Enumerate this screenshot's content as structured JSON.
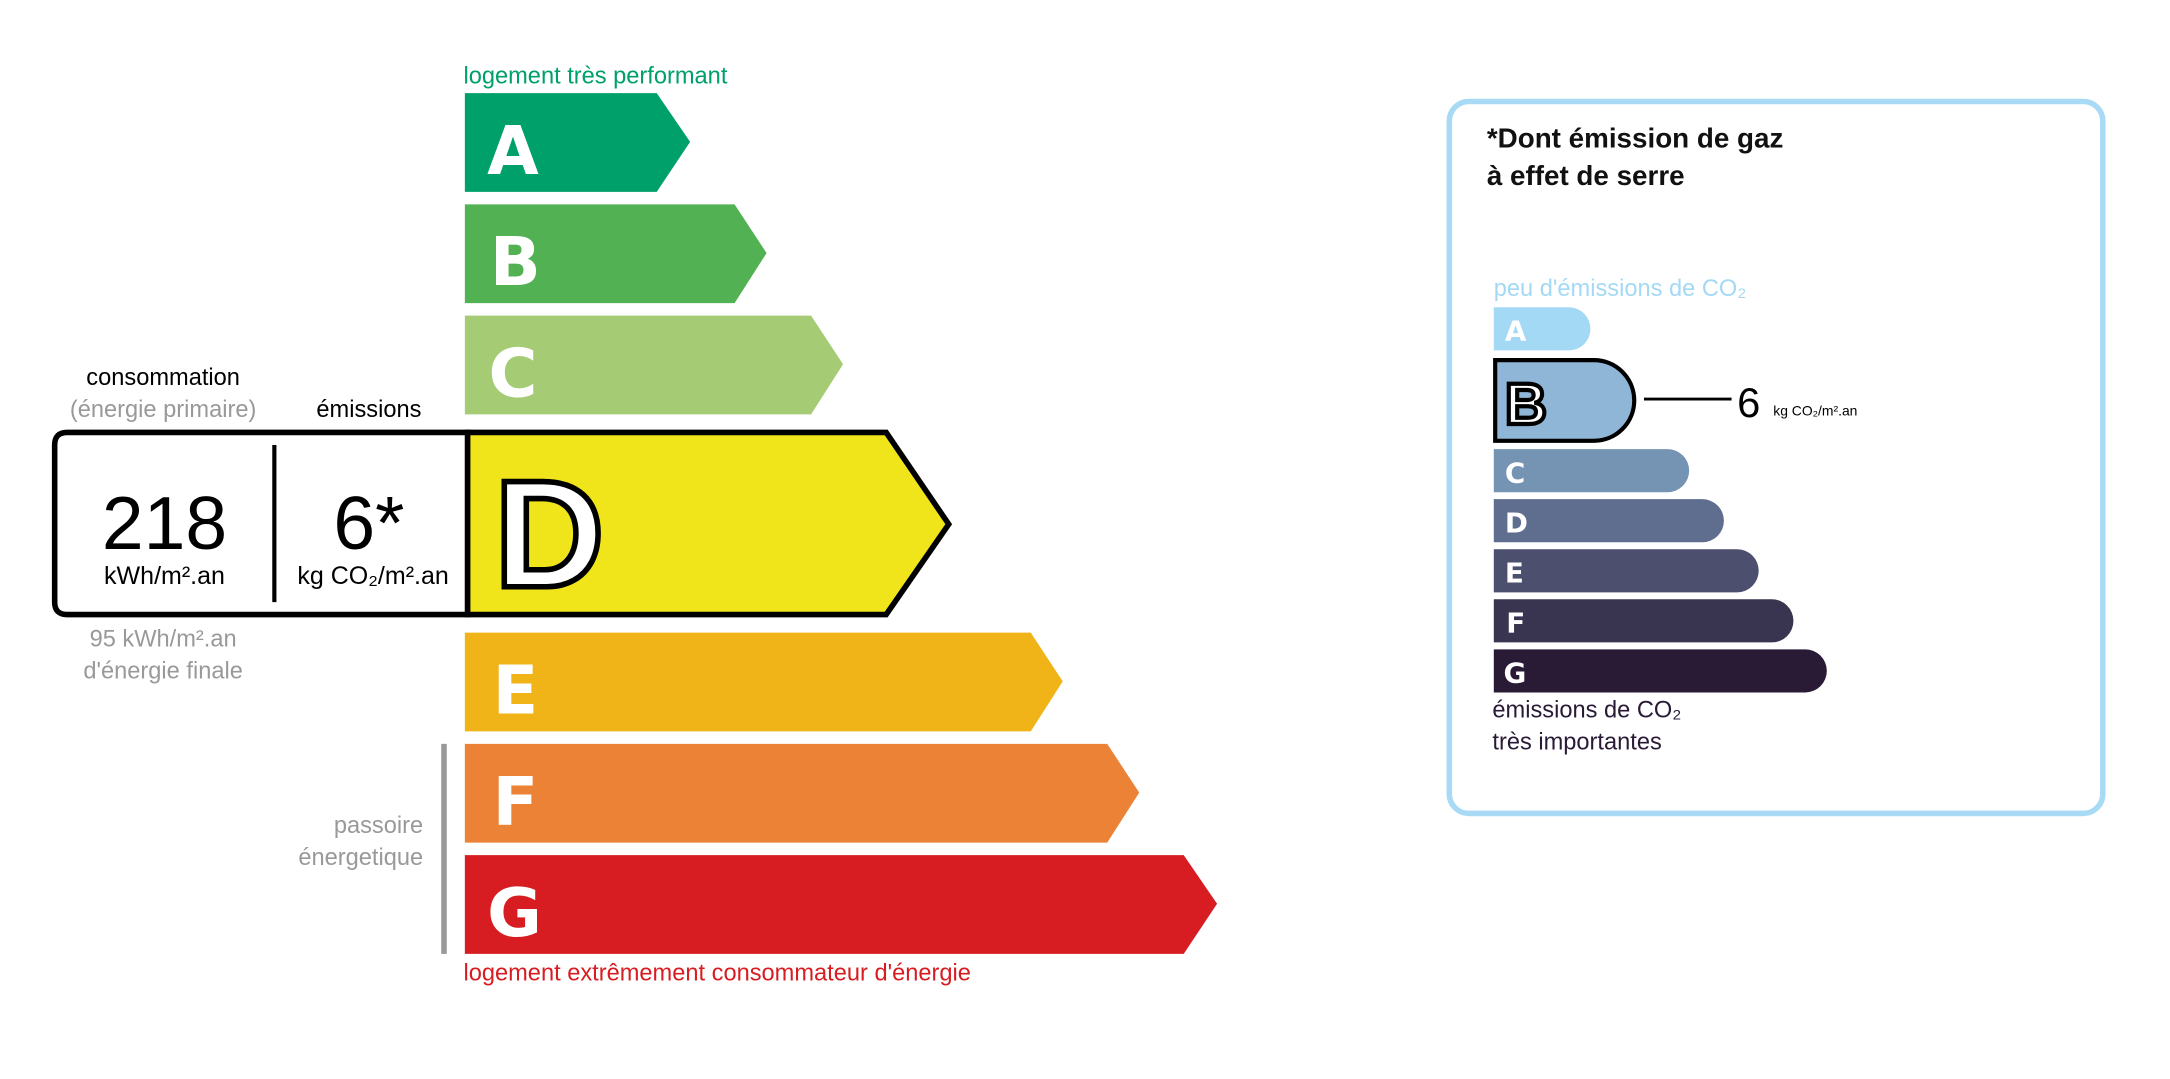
{
  "energy": {
    "top_label": "logement très performant",
    "bottom_label": "logement extrêmement consommateur d'énergie",
    "passoire_label": [
      "passoire",
      "énergetique"
    ],
    "classes": [
      {
        "letter": "A",
        "color": "#00a06a"
      },
      {
        "letter": "B",
        "color": "#52b153"
      },
      {
        "letter": "C",
        "color": "#a5cc74"
      },
      {
        "letter": "D",
        "color": "#f0e41a"
      },
      {
        "letter": "E",
        "color": "#f0b419"
      },
      {
        "letter": "F",
        "color": "#eb8235"
      },
      {
        "letter": "G",
        "color": "#d71d21"
      }
    ],
    "current_class": "D",
    "consumption_label": "consommation",
    "consumption_sub": "(énergie primaire)",
    "emissions_label": "émissions",
    "consumption_value": "218",
    "consumption_unit": "kWh/m².an",
    "emissions_value": "6*",
    "emissions_unit": "kg CO₂/m².an",
    "final_energy_value": "95 kWh/m².an",
    "final_energy_label": "d'énergie finale"
  },
  "ghg": {
    "title": [
      "*Dont émission de gaz",
      "à effet de serre"
    ],
    "top_label": "peu d'émissions de CO₂",
    "bottom_label": [
      "émissions de CO₂",
      "très importantes"
    ],
    "classes": [
      {
        "letter": "A",
        "color": "#a4d9f5"
      },
      {
        "letter": "B",
        "color": "#8fb6d6"
      },
      {
        "letter": "C",
        "color": "#7594b4"
      },
      {
        "letter": "D",
        "color": "#5f6d8e"
      },
      {
        "letter": "E",
        "color": "#4c4f6e"
      },
      {
        "letter": "F",
        "color": "#393550"
      },
      {
        "letter": "G",
        "color": "#291a35"
      }
    ],
    "current_class": "B",
    "value": "6",
    "unit": "kg CO₂/m².an",
    "border_color": "#a8daf5"
  }
}
